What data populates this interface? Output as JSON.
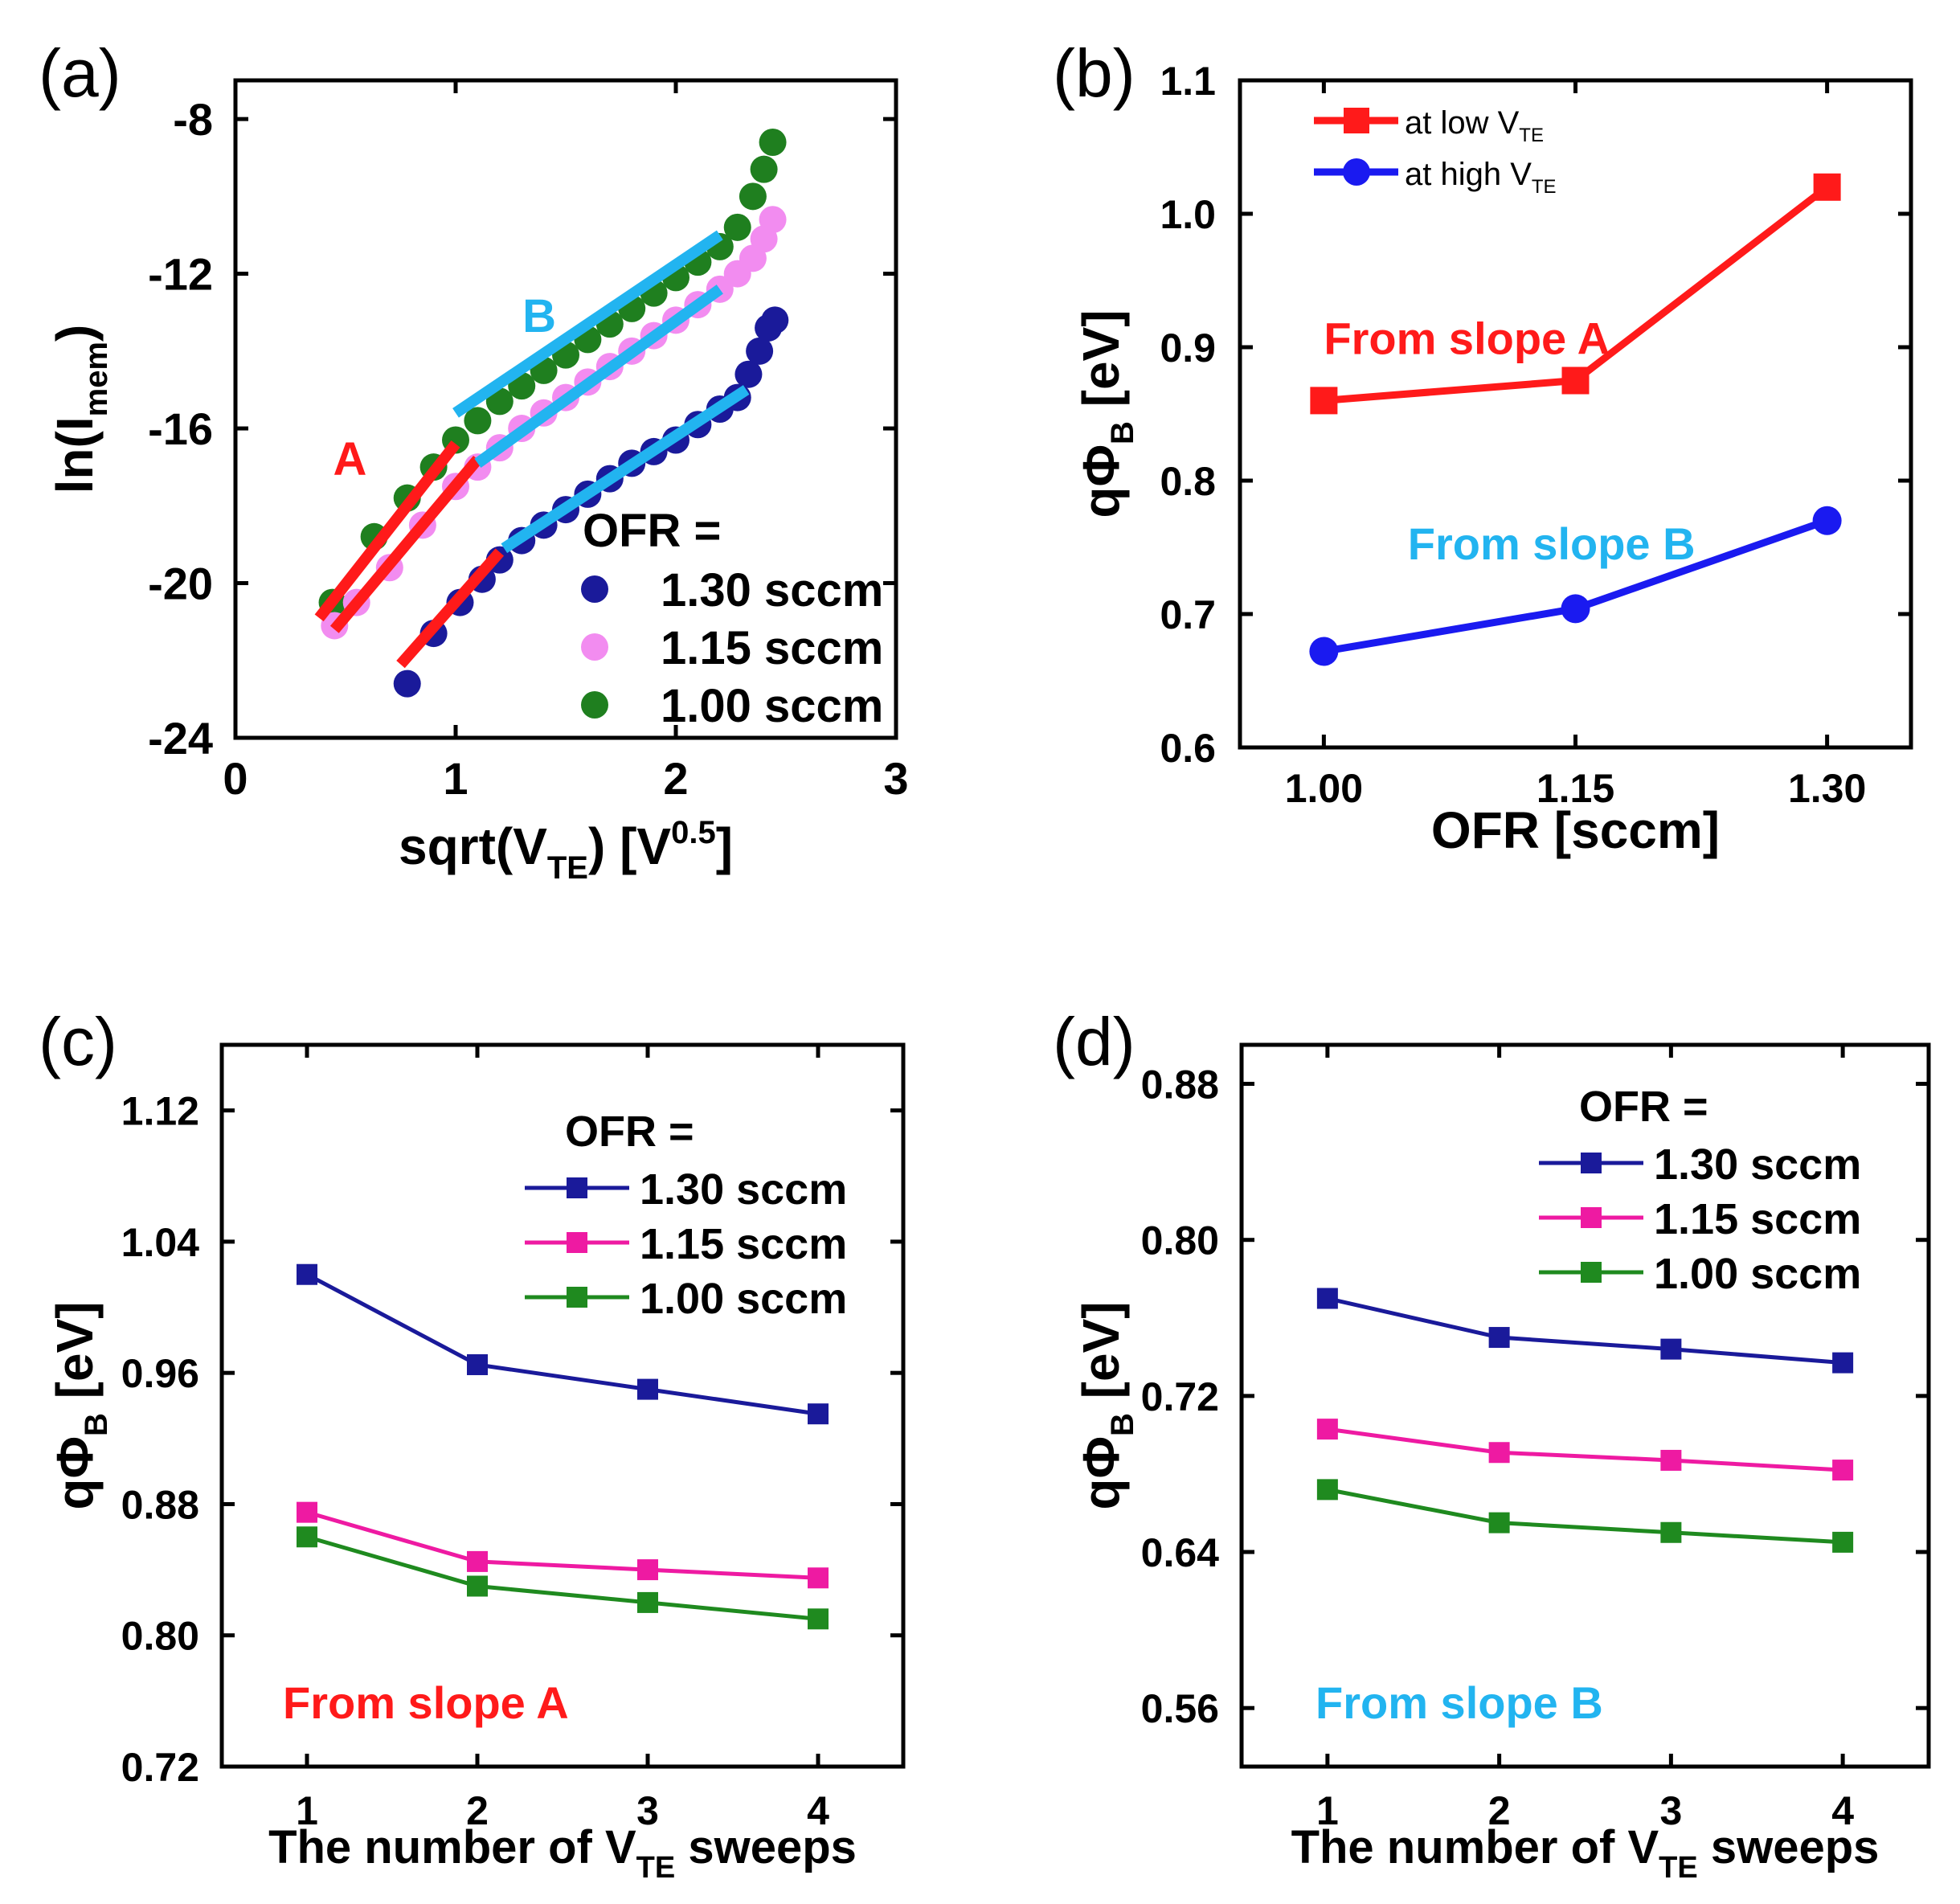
{
  "figure": {
    "panels": [
      "(a)",
      "(b)",
      "(c)",
      "(d)"
    ]
  },
  "chart_data": [
    {
      "id": "a",
      "type": "scatter",
      "panel_label": "(a)",
      "xlabel": {
        "base": "sqrt(V",
        "sub": "TE",
        "mid": ") [V",
        "sup": "0.5",
        "end": "]"
      },
      "ylabel": {
        "base": "ln(I",
        "sub": "mem",
        "end": ")"
      },
      "xlim": [
        0,
        3
      ],
      "ylim": [
        -24,
        -7
      ],
      "xticks": [
        0,
        1,
        2,
        3
      ],
      "yticks": [
        -24,
        -20,
        -16,
        -12,
        -8
      ],
      "legend_title": "OFR =",
      "colors": {
        "1.30 sccm": "#1a1a9a",
        "1.15 sccm": "#f28cf0",
        "1.00 sccm": "#1f7f1f",
        "fit_A": "#ff1a1a",
        "fit_B": "#22b4f0"
      },
      "series": [
        {
          "name": "1.30 sccm",
          "color": "#1a1a9a",
          "x": [
            0.78,
            0.9,
            1.02,
            1.12,
            1.2,
            1.3,
            1.4,
            1.5,
            1.6,
            1.7,
            1.8,
            1.9,
            2.0,
            2.1,
            2.2,
            2.28,
            2.33,
            2.38,
            2.42,
            2.45
          ],
          "y": [
            -22.6,
            -21.3,
            -20.5,
            -19.9,
            -19.4,
            -18.9,
            -18.5,
            -18.1,
            -17.7,
            -17.3,
            -16.9,
            -16.6,
            -16.3,
            -15.9,
            -15.5,
            -15.2,
            -14.6,
            -14.0,
            -13.4,
            -13.2
          ]
        },
        {
          "name": "1.15 sccm",
          "color": "#f28cf0",
          "x": [
            0.45,
            0.55,
            0.7,
            0.85,
            1.0,
            1.1,
            1.2,
            1.3,
            1.4,
            1.5,
            1.6,
            1.7,
            1.8,
            1.9,
            2.0,
            2.1,
            2.2,
            2.28,
            2.35,
            2.4,
            2.44
          ],
          "y": [
            -21.1,
            -20.5,
            -19.6,
            -18.5,
            -17.5,
            -17.0,
            -16.5,
            -16.0,
            -15.6,
            -15.2,
            -14.8,
            -14.4,
            -14.0,
            -13.6,
            -13.2,
            -12.8,
            -12.4,
            -12.0,
            -11.6,
            -11.1,
            -10.6
          ]
        },
        {
          "name": "1.00 sccm",
          "color": "#1f7f1f",
          "x": [
            0.44,
            0.63,
            0.78,
            0.9,
            1.0,
            1.1,
            1.2,
            1.3,
            1.4,
            1.5,
            1.6,
            1.7,
            1.8,
            1.9,
            2.0,
            2.1,
            2.2,
            2.28,
            2.35,
            2.4,
            2.44
          ],
          "y": [
            -20.5,
            -18.8,
            -17.8,
            -17.0,
            -16.3,
            -15.8,
            -15.3,
            -14.9,
            -14.5,
            -14.1,
            -13.7,
            -13.3,
            -12.9,
            -12.5,
            -12.1,
            -11.7,
            -11.3,
            -10.8,
            -10.0,
            -9.3,
            -8.6
          ]
        }
      ],
      "fits": [
        {
          "label": "A",
          "color": "#ff1a1a",
          "x": [
            0.38,
            1.0
          ],
          "y": [
            -20.9,
            -16.4
          ]
        },
        {
          "label": "A",
          "color": "#ff1a1a",
          "x": [
            0.45,
            1.1
          ],
          "y": [
            -21.2,
            -16.8
          ]
        },
        {
          "label": "A",
          "color": "#ff1a1a",
          "x": [
            0.75,
            1.2
          ],
          "y": [
            -22.1,
            -19.2
          ]
        },
        {
          "label": "B",
          "color": "#22b4f0",
          "x": [
            1.0,
            2.2
          ],
          "y": [
            -15.6,
            -11.0
          ]
        },
        {
          "label": "B",
          "color": "#22b4f0",
          "x": [
            1.1,
            2.2
          ],
          "y": [
            -16.9,
            -12.4
          ]
        },
        {
          "label": "B",
          "color": "#22b4f0",
          "x": [
            1.22,
            2.32
          ],
          "y": [
            -19.1,
            -15.0
          ]
        }
      ],
      "annotations": [
        {
          "text": "A",
          "color": "#ff1a1a",
          "x": 0.52,
          "y": -17.2
        },
        {
          "text": "B",
          "color": "#22b4f0",
          "x": 1.38,
          "y": -13.5
        }
      ]
    },
    {
      "id": "b",
      "type": "line",
      "panel_label": "(b)",
      "xlabel": "OFR [sccm]",
      "ylabel": {
        "base": "q",
        "phi": "Φ",
        "sub": "B",
        "end": " [eV]"
      },
      "categories": [
        "1.00",
        "1.15",
        "1.30"
      ],
      "x": [
        1.0,
        1.15,
        1.3
      ],
      "xlim": [
        0.95,
        1.35
      ],
      "ylim": [
        0.6,
        1.1
      ],
      "yticks": [
        "0.6",
        "0.7",
        "0.8",
        "0.9",
        "1.0",
        "1.1"
      ],
      "series": [
        {
          "name": "at low V",
          "sub": "TE",
          "color": "#ff1a1a",
          "marker": "square",
          "values": [
            0.86,
            0.875,
            1.02
          ]
        },
        {
          "name": "at high V",
          "sub": "TE",
          "color": "#1a1af0",
          "marker": "circle",
          "values": [
            0.672,
            0.704,
            0.77
          ]
        }
      ],
      "annotations": [
        {
          "text": "From slope A",
          "color": "#ff1a1a",
          "x": 1.0,
          "y": 0.895
        },
        {
          "text": "From slope B",
          "color": "#22b4f0",
          "x": 1.05,
          "y": 0.741
        }
      ]
    },
    {
      "id": "c",
      "type": "line",
      "panel_label": "(c)",
      "xlabel": {
        "base": "The number of V",
        "sub": "TE",
        "end": " sweeps"
      },
      "ylabel": {
        "base": "q",
        "phi": "Φ",
        "sub": "B",
        "end": " [eV]"
      },
      "x": [
        1,
        2,
        3,
        4
      ],
      "xlim": [
        0.5,
        4.5
      ],
      "ylim": [
        0.72,
        1.16
      ],
      "yticks": [
        "0.72",
        "0.80",
        "0.88",
        "0.96",
        "1.04",
        "1.12"
      ],
      "legend_title": "OFR =",
      "series": [
        {
          "name": "1.30 sccm",
          "color": "#1a1a9a",
          "values": [
            1.02,
            0.965,
            0.95,
            0.935
          ]
        },
        {
          "name": "1.15 sccm",
          "color": "#ee1aa2",
          "values": [
            0.875,
            0.845,
            0.84,
            0.835
          ]
        },
        {
          "name": "1.00 sccm",
          "color": "#1f8a1f",
          "values": [
            0.86,
            0.83,
            0.82,
            0.81
          ]
        }
      ],
      "annotation": {
        "text": "From slope A",
        "color": "#ff1a1a"
      }
    },
    {
      "id": "d",
      "type": "line",
      "panel_label": "(d)",
      "xlabel": {
        "base": "The number of V",
        "sub": "TE",
        "end": " sweeps"
      },
      "ylabel": {
        "base": "q",
        "phi": "Φ",
        "sub": "B",
        "end": " [eV]"
      },
      "x": [
        1,
        2,
        3,
        4
      ],
      "xlim": [
        0.5,
        4.5
      ],
      "ylim": [
        0.53,
        0.9
      ],
      "yticks": [
        "0.56",
        "0.64",
        "0.72",
        "0.80",
        "0.88"
      ],
      "legend_title": "OFR =",
      "series": [
        {
          "name": "1.30 sccm",
          "color": "#1a1a9a",
          "values": [
            0.77,
            0.75,
            0.744,
            0.737
          ]
        },
        {
          "name": "1.15 sccm",
          "color": "#ee1aa2",
          "values": [
            0.703,
            0.691,
            0.687,
            0.682
          ]
        },
        {
          "name": "1.00 sccm",
          "color": "#1f8a1f",
          "values": [
            0.672,
            0.655,
            0.65,
            0.645
          ]
        }
      ],
      "annotation": {
        "text": "From slope B",
        "color": "#22b4f0"
      }
    }
  ]
}
